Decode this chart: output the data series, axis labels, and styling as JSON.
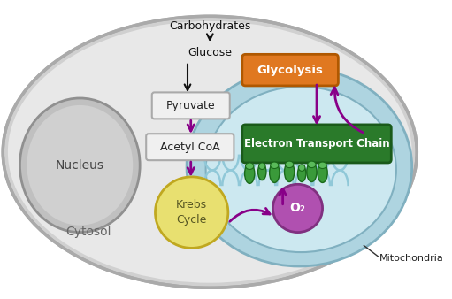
{
  "bg_color": "#ffffff",
  "cell_outer_color": "#d0d0d0",
  "cell_outer_edge": "#aaaaaa",
  "cell_inner_color": "#e8e8e8",
  "mito_outer_color": "#aed4e0",
  "mito_outer_edge": "#80b0c0",
  "mito_inner_color": "#cce8f0",
  "mito_inner_edge": "#80b0c0",
  "nucleus_face": "#c0c0c0",
  "nucleus_edge": "#909090",
  "nucleus_inner": "#d0d0d0",
  "glycolysis_color": "#e07820",
  "glycolysis_edge": "#b05800",
  "glycolysis_text": "Glycolysis",
  "etc_color": "#2a7a2a",
  "etc_edge": "#1a5a1a",
  "etc_text": "Electron Transport Chain",
  "krebs_color": "#e8e070",
  "krebs_edge": "#c0a820",
  "krebs_text": "Krebs\nCycle",
  "pyruvate_text": "Pyruvate",
  "acetylcoa_text": "Acetyl CoA",
  "o2_color": "#b050b0",
  "o2_edge": "#803080",
  "o2_text": "O₂",
  "nucleus_text": "Nucleus",
  "cytosol_text": "Cytosol",
  "carbo_text": "Carbohydrates",
  "glucose_text": "Glucose",
  "mito_text": "Mitochondria",
  "protein_color": "#3a9a3a",
  "protein_edge": "#1a6a1a",
  "arrow_purple": "#880088",
  "arrow_black": "#111111",
  "crista_color": "#90c8d8"
}
